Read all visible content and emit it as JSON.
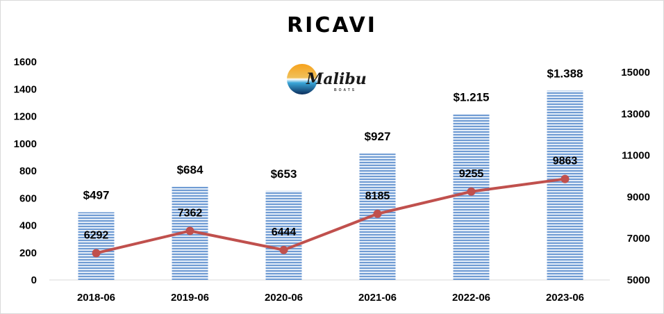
{
  "chart_data": {
    "type": "bar",
    "title": "RICAVI",
    "categories": [
      "2018-06",
      "2019-06",
      "2020-06",
      "2021-06",
      "2022-06",
      "2023-06"
    ],
    "series": [
      {
        "type": "bar",
        "axis": "left",
        "values": [
          497,
          684,
          653,
          927,
          1215,
          1388
        ],
        "labels": [
          "$497",
          "$684",
          "$653",
          "$927",
          "$1.215",
          "$1.388"
        ],
        "color": "#6f9bd3"
      },
      {
        "type": "line",
        "axis": "right",
        "values": [
          6292,
          7362,
          6444,
          8185,
          9255,
          9863
        ],
        "labels": [
          "6292",
          "7362",
          "6444",
          "8185",
          "9255",
          "9863"
        ],
        "color": "#c0504d"
      }
    ],
    "y_left": {
      "min": 0,
      "max": 1600,
      "ticks": [
        "0",
        "200",
        "400",
        "600",
        "800",
        "1000",
        "1200",
        "1400",
        "1600"
      ]
    },
    "y_right": {
      "min": 5000,
      "max": 15500,
      "ticks": [
        "5000",
        "7000",
        "9000",
        "11000",
        "13000",
        "15000"
      ]
    },
    "grid": false,
    "legend": "none"
  },
  "logo": {
    "name": "Malibu",
    "sub": "BOATS",
    "icon": "sunset-logo-icon"
  }
}
